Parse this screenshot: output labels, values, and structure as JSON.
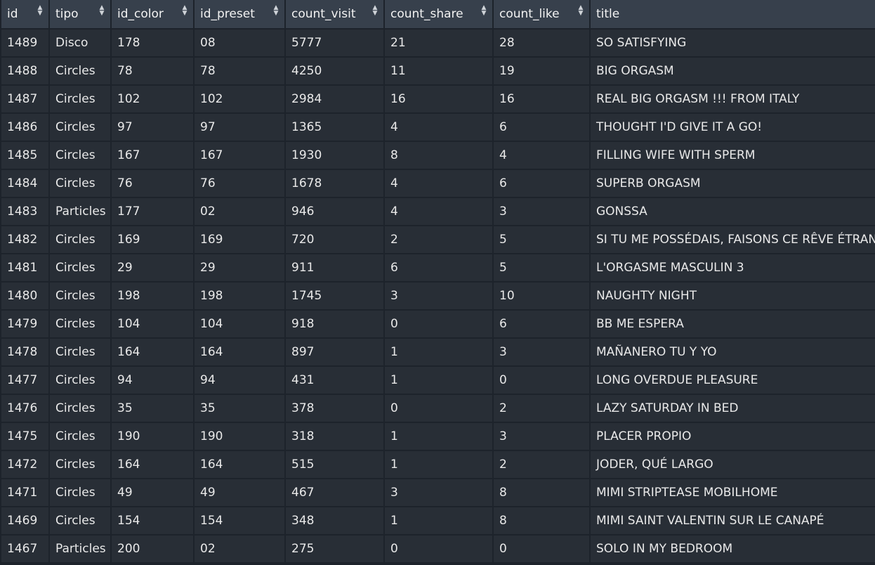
{
  "table": {
    "columns": [
      "id",
      "tipo",
      "id_color",
      "id_preset",
      "count_visit",
      "count_share",
      "count_like",
      "title"
    ],
    "sortable": [
      true,
      true,
      true,
      true,
      true,
      true,
      true,
      false
    ],
    "rows": [
      [
        "1489",
        "Disco",
        "178",
        "08",
        "5777",
        "21",
        "28",
        "SO SATISFYING"
      ],
      [
        "1488",
        "Circles",
        "78",
        "78",
        "4250",
        "11",
        "19",
        "BIG ORGASM"
      ],
      [
        "1487",
        "Circles",
        "102",
        "102",
        "2984",
        "16",
        "16",
        "REAL BIG ORGASM !!! FROM ITALY"
      ],
      [
        "1486",
        "Circles",
        "97",
        "97",
        "1365",
        "4",
        "6",
        "THOUGHT I'D GIVE IT A GO!"
      ],
      [
        "1485",
        "Circles",
        "167",
        "167",
        "1930",
        "8",
        "4",
        "FILLING WIFE WITH SPERM"
      ],
      [
        "1484",
        "Circles",
        "76",
        "76",
        "1678",
        "4",
        "6",
        "SUPERB ORGASM"
      ],
      [
        "1483",
        "Particles",
        "177",
        "02",
        "946",
        "4",
        "3",
        "GONSSA"
      ],
      [
        "1482",
        "Circles",
        "169",
        "169",
        "720",
        "2",
        "5",
        "SI TU ME POSSÉDAIS, FAISONS CE RÊVE ÉTRAN"
      ],
      [
        "1481",
        "Circles",
        "29",
        "29",
        "911",
        "6",
        "5",
        "L'ORGASME MASCULIN 3"
      ],
      [
        "1480",
        "Circles",
        "198",
        "198",
        "1745",
        "3",
        "10",
        "NAUGHTY NIGHT"
      ],
      [
        "1479",
        "Circles",
        "104",
        "104",
        "918",
        "0",
        "6",
        "BB ME ESPERA"
      ],
      [
        "1478",
        "Circles",
        "164",
        "164",
        "897",
        "1",
        "3",
        "MAÑANERO  TU Y YO"
      ],
      [
        "1477",
        "Circles",
        "94",
        "94",
        "431",
        "1",
        "0",
        "LONG OVERDUE PLEASURE"
      ],
      [
        "1476",
        "Circles",
        "35",
        "35",
        "378",
        "0",
        "2",
        "LAZY SATURDAY IN BED"
      ],
      [
        "1475",
        "Circles",
        "190",
        "190",
        "318",
        "1",
        "3",
        "PLACER PROPIO"
      ],
      [
        "1472",
        "Circles",
        "164",
        "164",
        "515",
        "1",
        "2",
        "JODER, QUÉ LARGO"
      ],
      [
        "1471",
        "Circles",
        "49",
        "49",
        "467",
        "3",
        "8",
        "MIMI STRIPTEASE MOBILHOME"
      ],
      [
        "1469",
        "Circles",
        "154",
        "154",
        "348",
        "1",
        "8",
        "MIMI SAINT VALENTIN SUR LE CANAPÉ"
      ],
      [
        "1467",
        "Particles",
        "200",
        "02",
        "275",
        "0",
        "0",
        "SOLO IN MY BEDROOM"
      ]
    ]
  },
  "icons": {
    "sort": "sort-updown-icon"
  },
  "colors": {
    "background": "#1d232b",
    "header_bg": "#37404c",
    "cell_bg": "#282e36",
    "text": "#e9e9e9"
  }
}
